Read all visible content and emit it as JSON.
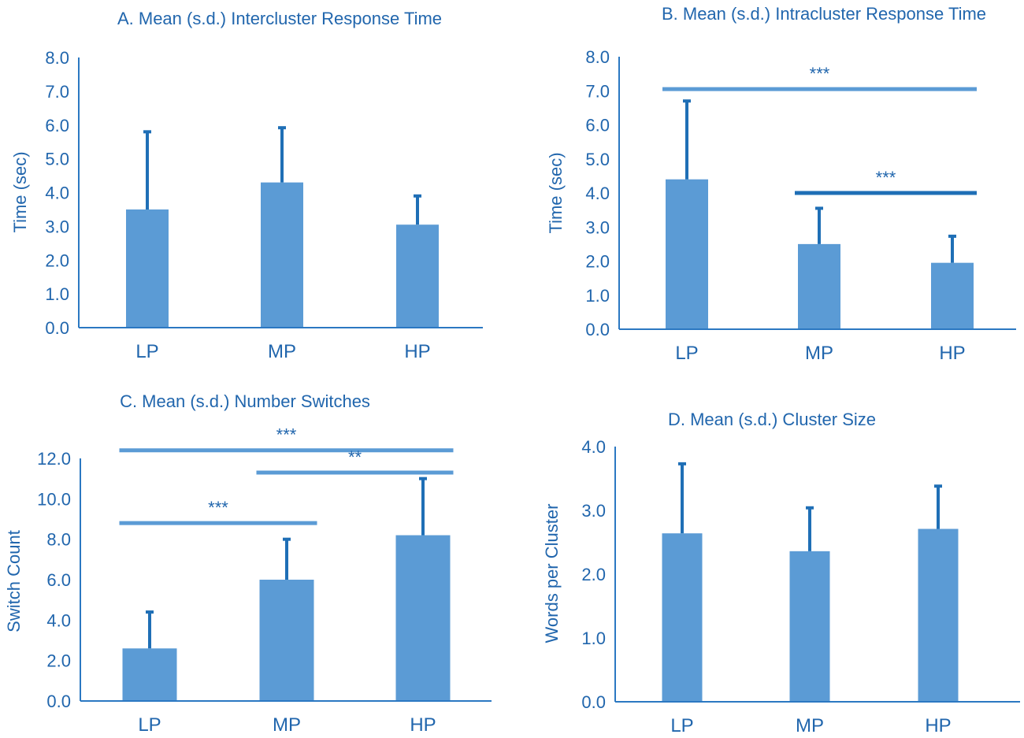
{
  "colors": {
    "bar": "#5b9bd5",
    "error": "#1f6fb6",
    "text": "#2166ad",
    "axis": "#2b78c2",
    "sig_light": "#5b9bd5",
    "sig_dark": "#1f6fb6"
  },
  "chart_data": [
    {
      "type": "bar",
      "title": "A. Mean (s.d.) Intercluster Response Time",
      "ylabel": "Time (sec)",
      "xlabel": "",
      "categories": [
        "LP",
        "MP",
        "HP"
      ],
      "values": [
        3.5,
        4.3,
        3.05
      ],
      "errors": [
        2.3,
        1.62,
        0.85
      ],
      "ylim": [
        0,
        8
      ],
      "yticks": [
        "0.0",
        "1.0",
        "2.0",
        "3.0",
        "4.0",
        "5.0",
        "6.0",
        "7.0",
        "8.0"
      ],
      "significance": []
    },
    {
      "type": "bar",
      "title": "B. Mean (s.d.) Intracluster Response Time",
      "ylabel": "Time (sec)",
      "xlabel": "",
      "categories": [
        "LP",
        "MP",
        "HP"
      ],
      "values": [
        4.4,
        2.5,
        1.95
      ],
      "errors": [
        2.3,
        1.05,
        0.78
      ],
      "ylim": [
        0,
        8
      ],
      "yticks": [
        "0.0",
        "1.0",
        "2.0",
        "3.0",
        "4.0",
        "5.0",
        "6.0",
        "7.0",
        "8.0"
      ],
      "significance": [
        {
          "from": 0,
          "to": 2,
          "y": 7.05,
          "label": "***",
          "tone": "light"
        },
        {
          "from": 1,
          "to": 2,
          "y": 4.0,
          "label": "***",
          "tone": "dark"
        }
      ]
    },
    {
      "type": "bar",
      "title": "C. Mean (s.d.) Number Switches",
      "ylabel": "Switch Count",
      "xlabel": "",
      "categories": [
        "LP",
        "MP",
        "HP"
      ],
      "values": [
        2.6,
        6.0,
        8.2
      ],
      "errors": [
        1.8,
        2.0,
        2.8
      ],
      "ylim": [
        0,
        12
      ],
      "yticks": [
        "0.0",
        "2.0",
        "4.0",
        "6.0",
        "8.0",
        "10.0",
        "12.0"
      ],
      "significance": [
        {
          "from": 0,
          "to": 2,
          "y": 12.4,
          "label": "***",
          "tone": "light"
        },
        {
          "from": 1,
          "to": 2,
          "y": 11.3,
          "label": "**",
          "tone": "light"
        },
        {
          "from": 0,
          "to": 1,
          "y": 8.8,
          "label": "***",
          "tone": "light"
        }
      ]
    },
    {
      "type": "bar",
      "title": "D. Mean (s.d.) Cluster Size",
      "ylabel": "Words per Cluster",
      "xlabel": "",
      "categories": [
        "LP",
        "MP",
        "HP"
      ],
      "values": [
        2.64,
        2.36,
        2.71
      ],
      "errors": [
        1.09,
        0.68,
        0.67
      ],
      "ylim": [
        0,
        4
      ],
      "yticks": [
        "0.0",
        "1.0",
        "2.0",
        "3.0",
        "4.0"
      ],
      "significance": []
    }
  ]
}
